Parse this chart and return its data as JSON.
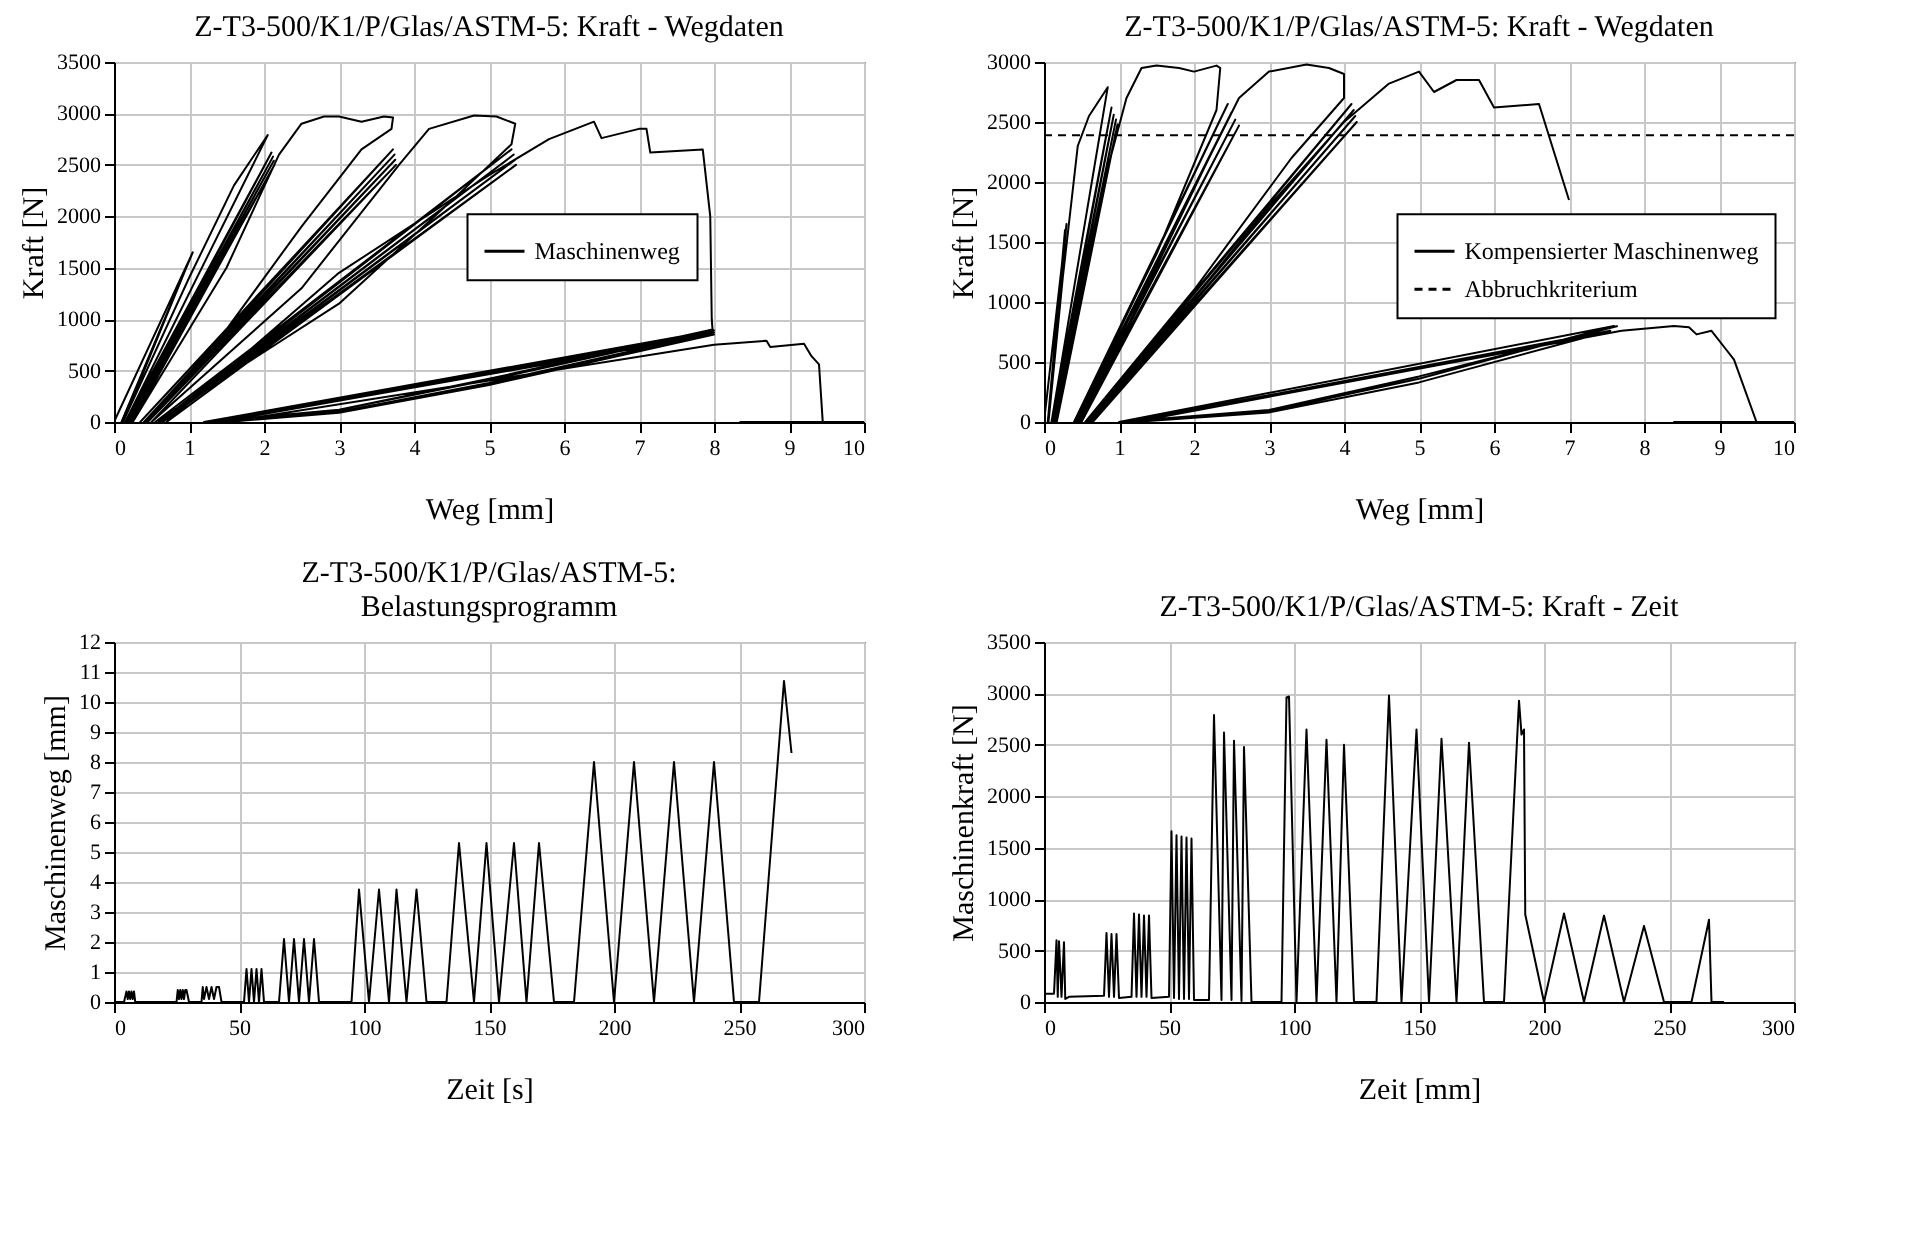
{
  "chart_data": [
    {
      "type": "line",
      "title": "Z-T3-500/K1/P/Glas/ASTM-5: Kraft - Wegdaten",
      "xlabel": "Weg [mm]",
      "ylabel": "Kraft [N]",
      "xlim": [
        0,
        10
      ],
      "ylim": [
        0,
        3500
      ],
      "xticks": [
        0,
        1,
        2,
        3,
        4,
        5,
        6,
        7,
        8,
        9,
        10
      ],
      "yticks": [
        0,
        500,
        1000,
        1500,
        2000,
        2500,
        3000,
        3500
      ],
      "grid": true,
      "legend": "right",
      "series": [
        {
          "name": "Maschinenweg",
          "color": "#000000",
          "line_style": "solid",
          "x": [
            0,
            1.05,
            0.1,
            1.02,
            0.12,
            1.0,
            1.6,
            2.05,
            0.15,
            2.1,
            0.18,
            2.12,
            0.2,
            2.13,
            0.22,
            2.14,
            0.25,
            1.5,
            2.2,
            2.5,
            2.8,
            3.0,
            3.3,
            3.6,
            3.72,
            3.7,
            3.3,
            2.5,
            1.5,
            0.35,
            3.72,
            0.4,
            3.74,
            0.42,
            3.75,
            0.45,
            3.76,
            0.5,
            2.5,
            3.8,
            4.2,
            4.8,
            5.1,
            5.35,
            5.3,
            4.5,
            3,
            0.55,
            5.3,
            0.6,
            5.33,
            0.62,
            5.35,
            0.65,
            5.36,
            0.7,
            3,
            5,
            5.8,
            6.4,
            6.5,
            7.0,
            7.1,
            7.15,
            7.85,
            7.95,
            7.97,
            7.98,
            5,
            3,
            1.2,
            8,
            5,
            3,
            1.3,
            8,
            5,
            3,
            1.4,
            8,
            5,
            3,
            1.5,
            8,
            8.7,
            8.75,
            9.2,
            9.3,
            9.4,
            9.45,
            8.35,
            10
          ],
          "values": [
            0,
            1650,
            0,
            1600,
            0,
            1400,
            2300,
            2790,
            0,
            2620,
            0,
            2580,
            0,
            2540,
            0,
            2500,
            0,
            1500,
            2600,
            2900,
            2970,
            2970,
            2920,
            2970,
            2960,
            2850,
            2650,
            1900,
            900,
            0,
            2650,
            0,
            2600,
            0,
            2550,
            0,
            2500,
            0,
            1300,
            2500,
            2850,
            2980,
            2970,
            2900,
            2700,
            2150,
            1150,
            0,
            2650,
            0,
            2600,
            0,
            2550,
            0,
            2500,
            0,
            1450,
            2400,
            2750,
            2920,
            2760,
            2850,
            2850,
            2620,
            2650,
            2000,
            1000,
            900,
            420,
            120,
            0,
            890,
            410,
            120,
            0,
            870,
            380,
            100,
            0,
            850,
            360,
            90,
            0,
            750,
            790,
            730,
            760,
            640,
            560,
            0,
            0,
            0
          ]
        }
      ]
    },
    {
      "type": "line",
      "title": "Z-T3-500/K1/P/Glas/ASTM-5: Kraft - Wegdaten",
      "xlabel": "Weg [mm]",
      "ylabel": "Kraft  [N]",
      "xlim": [
        0,
        10
      ],
      "ylim": [
        0,
        3000
      ],
      "xticks": [
        0,
        1,
        2,
        3,
        4,
        5,
        6,
        7,
        8,
        9,
        10
      ],
      "yticks": [
        0,
        500,
        1000,
        1500,
        2000,
        2500,
        3000
      ],
      "grid": true,
      "legend": "right",
      "ref_lines": [
        {
          "axis": "y",
          "value": 2390,
          "label": "Abbruchkriterium",
          "color": "#000000",
          "line_style": "dashed"
        }
      ],
      "series": [
        {
          "name": "Kompensierter Maschinenweg",
          "color": "#000000",
          "line_style": "solid",
          "x": [
            0,
            0.3,
            0.05,
            0.28,
            0.06,
            0.25,
            0.45,
            0.6,
            0.85,
            0.1,
            0.9,
            0.12,
            0.93,
            0.14,
            0.96,
            0.15,
            0.98,
            0.17,
            0.8,
            1.1,
            1.3,
            1.5,
            1.8,
            2.0,
            2.3,
            2.35,
            2.3,
            1.5,
            0.4,
            2.45,
            0.42,
            2.5,
            0.45,
            2.55,
            0.47,
            2.6,
            0.5,
            2.2,
            2.6,
            3.0,
            3.5,
            3.8,
            4.0,
            4.0,
            3.3,
            2,
            0.55,
            4.1,
            0.58,
            4.13,
            0.6,
            4.15,
            0.62,
            4.17,
            0.65,
            3,
            4,
            4.6,
            5.0,
            5.2,
            5.5,
            5.8,
            6.0,
            6.6,
            7.0,
            7.1,
            7.5,
            7.65,
            5,
            3,
            1,
            7.6,
            5,
            3,
            1.1,
            7.55,
            5,
            3,
            1.2,
            7.7,
            8.4,
            8.6,
            8.7,
            8.9,
            9.1,
            9.2,
            9.5,
            8.4,
            10
          ],
          "values": [
            0,
            1650,
            0,
            1600,
            0,
            1200,
            2300,
            2550,
            2790,
            0,
            2620,
            0,
            2560,
            0,
            2520,
            0,
            2480,
            0,
            2000,
            2700,
            2950,
            2970,
            2950,
            2920,
            2970,
            2950,
            2600,
            1400,
            0,
            2650,
            0,
            2580,
            0,
            2520,
            0,
            2470,
            0,
            2200,
            2700,
            2920,
            2980,
            2950,
            2900,
            2700,
            2200,
            1100,
            0,
            2650,
            0,
            2600,
            0,
            2550,
            0,
            2500,
            0,
            1800,
            2500,
            2820,
            2920,
            2750,
            2850,
            2850,
            2620,
            2650,
            1850,
            null,
            null,
            800,
            380,
            100,
            0,
            800,
            360,
            90,
            0,
            760,
            330,
            80,
            0,
            760,
            800,
            790,
            730,
            760,
            600,
            520,
            0,
            0,
            0
          ]
        }
      ]
    },
    {
      "type": "line",
      "title": "Z-T3-500/K1/P/Glas/ASTM-5: Belastungsprogramm",
      "xlabel": "Zeit [s]",
      "ylabel": "Maschinenweg  [mm]",
      "xlim": [
        0,
        300
      ],
      "ylim": [
        0,
        12
      ],
      "xticks": [
        0,
        50,
        100,
        150,
        200,
        250,
        300
      ],
      "yticks": [
        0,
        1,
        2,
        3,
        4,
        5,
        6,
        7,
        8,
        9,
        10,
        11,
        12
      ],
      "grid": true,
      "series": [
        {
          "color": "#000000",
          "line_style": "solid",
          "x": [
            0,
            4,
            5,
            5.5,
            6,
            6.5,
            7,
            7.5,
            8,
            8.5,
            25,
            25.5,
            26,
            26.5,
            27,
            27.5,
            28,
            28.5,
            29,
            30,
            35,
            35.5,
            36,
            37,
            38,
            39,
            40,
            41,
            42,
            43,
            52,
            53,
            54,
            55,
            56,
            57,
            58,
            59,
            60,
            66,
            68,
            70,
            72,
            74,
            76,
            78,
            80,
            82,
            95,
            98,
            102,
            106,
            110,
            113,
            117,
            121,
            125,
            133,
            138,
            144,
            149,
            154,
            160,
            165,
            170,
            176,
            184,
            192,
            200,
            208,
            216,
            224,
            232,
            240,
            248,
            258,
            268,
            271
          ],
          "values": [
            0,
            0,
            0.35,
            0.1,
            0.35,
            0.1,
            0.35,
            0.1,
            0.35,
            0,
            0,
            0.4,
            0.1,
            0.4,
            0.1,
            0.4,
            0.1,
            0.4,
            0.4,
            0,
            0,
            0.5,
            0.1,
            0.5,
            0.1,
            0.5,
            0.1,
            0.5,
            0.5,
            0,
            0,
            1.1,
            0,
            1.1,
            0,
            1.1,
            0,
            1.1,
            0,
            0,
            2.1,
            0,
            2.1,
            0,
            2.1,
            0,
            2.1,
            0,
            0,
            3.75,
            0,
            3.75,
            0,
            3.75,
            0,
            3.75,
            0,
            0,
            5.3,
            0,
            5.3,
            0,
            5.3,
            0,
            5.3,
            0,
            0,
            8,
            0,
            8,
            0,
            8,
            0,
            8,
            0,
            0,
            10.7,
            8.3
          ]
        }
      ]
    },
    {
      "type": "line",
      "title": "Z-T3-500/K1/P/Glas/ASTM-5: Kraft - Zeit",
      "xlabel": "Zeit [mm]",
      "ylabel": "Maschinenkraft [N]",
      "xlim": [
        0,
        300
      ],
      "ylim": [
        0,
        3500
      ],
      "xticks": [
        0,
        50,
        100,
        150,
        200,
        250,
        300
      ],
      "yticks": [
        0,
        500,
        1000,
        1500,
        2000,
        2500,
        3000,
        3500
      ],
      "grid": true,
      "series": [
        {
          "color": "#000000",
          "line_style": "solid",
          "x": [
            0,
            4,
            5,
            5.5,
            6,
            7,
            8,
            8.5,
            10,
            24,
            25,
            26,
            27,
            28,
            29,
            30,
            35,
            36,
            37,
            38,
            39,
            40,
            41,
            42,
            43,
            50,
            51,
            52,
            53,
            54,
            55,
            56,
            57,
            58,
            59,
            60,
            66,
            68,
            71,
            72,
            75,
            76,
            79,
            80,
            83,
            95,
            97,
            98,
            101,
            105,
            109,
            113,
            117,
            120,
            124,
            133,
            138,
            143,
            149,
            154,
            159,
            165,
            170,
            176,
            184,
            190,
            191,
            192,
            192.5,
            200,
            208,
            216,
            224,
            232,
            240,
            248,
            259,
            266,
            267,
            272
          ],
          "values": [
            80,
            80,
            600,
            50,
            590,
            50,
            580,
            30,
            50,
            60,
            670,
            50,
            660,
            50,
            660,
            40,
            50,
            860,
            50,
            850,
            50,
            840,
            50,
            840,
            40,
            50,
            1660,
            40,
            1620,
            30,
            1610,
            30,
            1600,
            30,
            1590,
            20,
            20,
            2790,
            20,
            2620,
            20,
            2540,
            10,
            2480,
            0,
            0,
            2960,
            2970,
            0,
            2650,
            0,
            2550,
            0,
            2500,
            0,
            0,
            2980,
            0,
            2650,
            0,
            2560,
            0,
            2520,
            0,
            0,
            2930,
            2600,
            2650,
            850,
            0,
            860,
            0,
            840,
            0,
            740,
            0,
            0,
            800,
            0,
            0
          ]
        }
      ]
    }
  ]
}
